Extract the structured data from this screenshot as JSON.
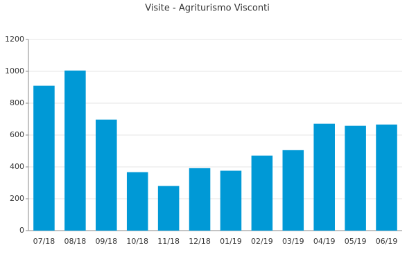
{
  "chart_data": {
    "type": "bar",
    "title": "Visite - Agriturismo Visconti",
    "categories": [
      "07/18",
      "08/18",
      "09/18",
      "10/18",
      "11/18",
      "12/18",
      "01/19",
      "02/19",
      "03/19",
      "04/19",
      "05/19",
      "06/19"
    ],
    "values": [
      910,
      1005,
      697,
      367,
      280,
      392,
      376,
      471,
      505,
      671,
      658,
      666
    ],
    "color": "#0099d6",
    "ylim": [
      0,
      1200
    ],
    "yticks": [
      0,
      200,
      400,
      600,
      800,
      1000,
      1200
    ],
    "grid": true
  }
}
